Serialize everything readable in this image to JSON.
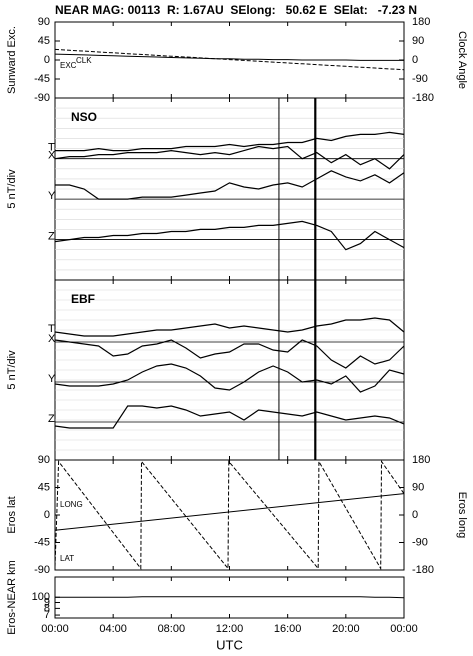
{
  "title": "NEAR MAG: 00113  R: 1.67AU  SElong:   50.62 E  SElat:   -7.23 N",
  "chart_data": [
    {
      "type": "line",
      "ylabel": "Sunward Exc.",
      "y2label": "Clock Angle",
      "xlim": [
        0,
        24
      ],
      "ylim": [
        -90,
        90
      ],
      "yticks": [
        90,
        45,
        0,
        -45,
        -90
      ],
      "y2lim": [
        -180,
        180
      ],
      "y2ticks": [
        180,
        90,
        0,
        -90,
        -180
      ],
      "x": [
        0,
        1,
        2,
        3,
        4,
        5,
        6,
        7,
        8,
        9,
        10,
        11,
        12,
        13,
        14,
        15,
        16,
        17,
        18,
        19,
        20,
        21,
        22,
        23,
        24
      ],
      "series": [
        {
          "name": "EXC",
          "color": "#000000",
          "style": "solid",
          "values": [
            14,
            13,
            12,
            11,
            10,
            9,
            8,
            7,
            6,
            5,
            4,
            3,
            3,
            2,
            2,
            1,
            1,
            0,
            0,
            0,
            0,
            -1,
            -1,
            -1,
            -1
          ]
        },
        {
          "name": "CLK",
          "color": "#000000",
          "style": "dashed",
          "axis": "y2",
          "values": [
            50,
            46,
            42,
            38,
            34,
            30,
            26,
            22,
            18,
            14,
            10,
            6,
            2,
            -2,
            -6,
            -10,
            -14,
            -18,
            -22,
            -26,
            -30,
            -34,
            -38,
            -42,
            -46
          ]
        }
      ]
    },
    {
      "type": "line",
      "label": "NSO",
      "ylabel": "5 nT/div",
      "xlim": [
        0,
        24
      ],
      "ylim": [
        0,
        90
      ],
      "grid_lines": [
        5,
        10,
        15,
        20,
        25,
        30,
        35,
        40,
        45,
        50,
        55,
        60,
        65,
        70,
        75,
        80,
        85
      ],
      "markers": [
        15.4,
        17.9
      ],
      "x": [
        0,
        1,
        2,
        3,
        4,
        5,
        6,
        7,
        8,
        9,
        10,
        11,
        12,
        13,
        14,
        15,
        16,
        17,
        18,
        19,
        20,
        21,
        22,
        23,
        24
      ],
      "series": [
        {
          "name": "T",
          "color": "#000000",
          "style": "solid",
          "values": [
            64,
            64,
            64,
            65,
            64,
            64,
            65,
            65,
            65,
            66,
            66,
            66,
            67,
            66,
            67,
            67,
            68,
            68,
            70,
            69,
            71,
            72,
            72,
            73,
            72
          ]
        },
        {
          "name": "X",
          "color": "#000000",
          "style": "solid",
          "baseline": 60,
          "values": [
            60,
            61,
            61,
            62,
            62,
            63,
            63,
            63,
            64,
            63,
            62,
            63,
            62,
            64,
            66,
            65,
            66,
            60,
            63,
            58,
            62,
            57,
            60,
            55,
            62
          ]
        },
        {
          "name": "Y",
          "color": "#000000",
          "style": "solid",
          "baseline": 40,
          "values": [
            47,
            47,
            45,
            40,
            40,
            40,
            41,
            41,
            41,
            42,
            43,
            44,
            48,
            46,
            45,
            47,
            48,
            46,
            50,
            54,
            51,
            49,
            52,
            48,
            53
          ]
        },
        {
          "name": "Z",
          "color": "#000000",
          "style": "solid",
          "baseline": 20,
          "values": [
            19,
            20,
            21,
            21,
            22,
            22,
            23,
            23,
            24,
            24,
            25,
            25,
            26,
            26,
            27,
            27,
            28,
            29,
            27,
            24,
            15,
            18,
            24,
            20,
            16
          ]
        }
      ]
    },
    {
      "type": "line",
      "label": "EBF",
      "ylabel": "5 nT/div",
      "xlim": [
        0,
        24
      ],
      "ylim": [
        0,
        90
      ],
      "grid_lines": [
        5,
        10,
        15,
        20,
        25,
        30,
        35,
        40,
        45,
        50,
        55,
        60,
        65,
        70,
        75,
        80,
        85
      ],
      "markers": [
        15.4,
        17.9
      ],
      "x": [
        0,
        1,
        2,
        3,
        4,
        5,
        6,
        7,
        8,
        9,
        10,
        11,
        12,
        13,
        14,
        15,
        16,
        17,
        18,
        19,
        20,
        21,
        22,
        23,
        24
      ],
      "series": [
        {
          "name": "T",
          "color": "#000000",
          "style": "solid",
          "values": [
            64,
            63,
            62,
            62,
            62,
            63,
            64,
            65,
            65,
            66,
            67,
            68,
            66,
            67,
            66,
            65,
            64,
            65,
            67,
            68,
            70,
            70,
            71,
            70,
            64
          ]
        },
        {
          "name": "X",
          "color": "#000000",
          "style": "solid",
          "baseline": 59,
          "values": [
            60,
            59,
            58,
            57,
            52,
            53,
            57,
            58,
            60,
            56,
            51,
            53,
            54,
            58,
            58,
            55,
            54,
            60,
            57,
            50,
            46,
            52,
            48,
            50,
            57
          ]
        },
        {
          "name": "Y",
          "color": "#000000",
          "style": "solid",
          "baseline": 39,
          "values": [
            38,
            37,
            37,
            37,
            38,
            40,
            44,
            47,
            48,
            46,
            42,
            36,
            35,
            39,
            44,
            47,
            44,
            39,
            40,
            38,
            42,
            34,
            37,
            45,
            43
          ]
        },
        {
          "name": "Z",
          "color": "#000000",
          "style": "solid",
          "baseline": 19,
          "values": [
            17,
            16,
            16,
            16,
            16,
            27,
            27,
            26,
            27,
            25,
            22,
            23,
            24,
            20,
            25,
            24,
            23,
            22,
            24,
            22,
            20,
            21,
            22,
            21,
            18
          ]
        }
      ]
    },
    {
      "type": "line",
      "ylabel": "Eros lat",
      "y2label": "Eros long",
      "xlim": [
        0,
        24
      ],
      "ylim": [
        -90,
        90
      ],
      "yticks": [
        90,
        45,
        0,
        -45,
        -90
      ],
      "y2lim": [
        -180,
        180
      ],
      "y2ticks": [
        180,
        90,
        0,
        -90,
        -180
      ],
      "series": [
        {
          "name": "LONG",
          "color": "#000000",
          "style": "dashed",
          "axis": "y2",
          "x": [
            0,
            0.25,
            5.9,
            5.95,
            11.9,
            11.95,
            18.1,
            18.15,
            22.4,
            22.45,
            24
          ],
          "values": [
            -170,
            175,
            -175,
            175,
            -175,
            175,
            -175,
            175,
            -175,
            175,
            70
          ]
        },
        {
          "name": "LAT",
          "color": "#000000",
          "style": "solid",
          "x": [
            0,
            24
          ],
          "values": [
            -25,
            35
          ]
        }
      ]
    },
    {
      "type": "line",
      "ylabel": "Eros-NEAR km",
      "xlabel": "UTC",
      "xlim": [
        0,
        24
      ],
      "ylim": [
        66,
        150
      ],
      "log_y": true,
      "yticks": [
        100,
        {
          "value": 90,
          "label": "9"
        },
        {
          "value": 80,
          "label": "8"
        },
        {
          "value": 70,
          "label": "7"
        }
      ],
      "xticks": [
        {
          "value": 0,
          "label": "00:00"
        },
        {
          "value": 4,
          "label": "04:00"
        },
        {
          "value": 8,
          "label": "08:00"
        },
        {
          "value": 12,
          "label": "12:00"
        },
        {
          "value": 16,
          "label": "16:00"
        },
        {
          "value": 20,
          "label": "20:00"
        },
        {
          "value": 24,
          "label": "00:00"
        }
      ],
      "x": [
        0,
        1,
        2,
        3,
        4,
        5,
        6,
        7,
        8,
        9,
        10,
        11,
        12,
        13,
        14,
        15,
        16,
        17,
        18,
        19,
        20,
        21,
        22,
        23,
        24
      ],
      "series": [
        {
          "color": "#000000",
          "style": "solid",
          "values": [
            100,
            100,
            100,
            100,
            100,
            100,
            101,
            101,
            101,
            101,
            101,
            101,
            101,
            101,
            101,
            101,
            101,
            101,
            101,
            101,
            101,
            101,
            100,
            100,
            99
          ]
        }
      ]
    }
  ]
}
